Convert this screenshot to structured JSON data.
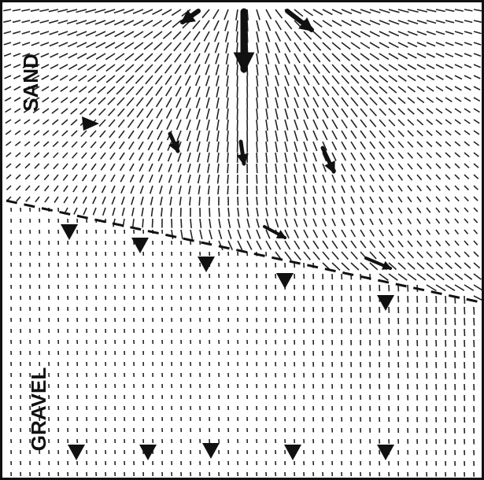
{
  "regions": [
    {
      "label": "SAND"
    },
    {
      "label": "GRAVEL"
    }
  ]
}
